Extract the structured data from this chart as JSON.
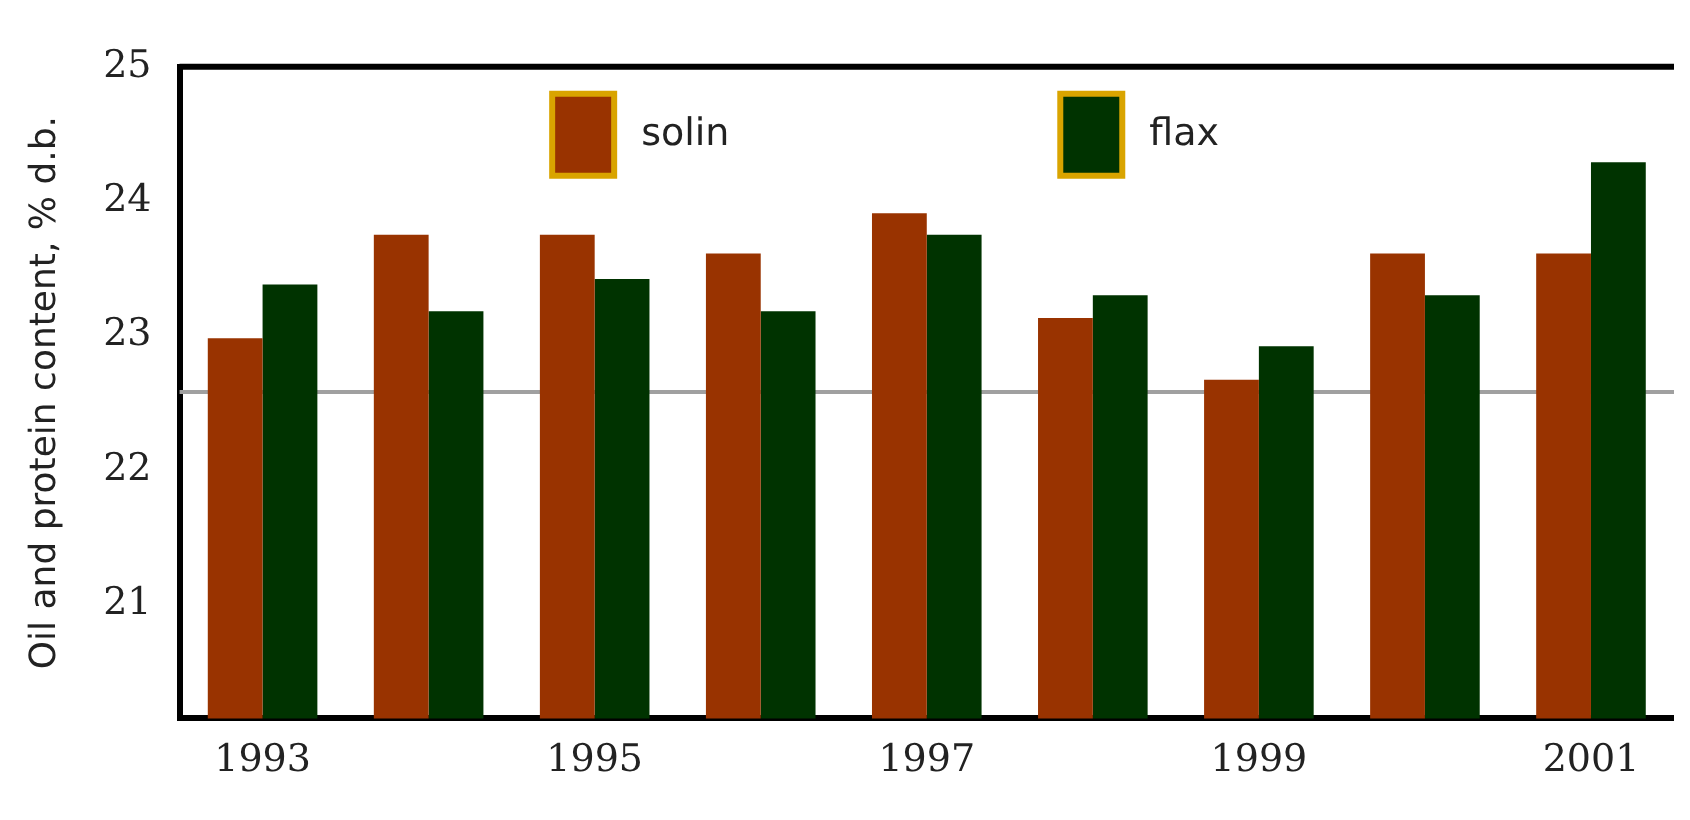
{
  "chart_data": {
    "type": "bar",
    "ylabel": "Oil and protein content, % d.b.",
    "categories": [
      "1993",
      null,
      "1995",
      null,
      "1997",
      null,
      "1999",
      null,
      "2001"
    ],
    "series": [
      {
        "name": "solin",
        "color": "#993300",
        "values": [
          22.98,
          23.75,
          23.75,
          23.61,
          23.91,
          23.13,
          22.67,
          23.61,
          23.61
        ]
      },
      {
        "name": "flax",
        "color": "#003300",
        "values": [
          23.38,
          23.18,
          23.42,
          23.18,
          23.75,
          23.3,
          22.92,
          23.3,
          24.29
        ]
      }
    ],
    "ylim": [
      20.15,
      25
    ],
    "yticks": [
      21,
      22,
      23,
      24,
      25
    ],
    "grid": false,
    "legend": "top",
    "ref_lines": [
      {
        "axis": "y",
        "value": 22.58,
        "color": "#a0a0a0"
      }
    ]
  }
}
